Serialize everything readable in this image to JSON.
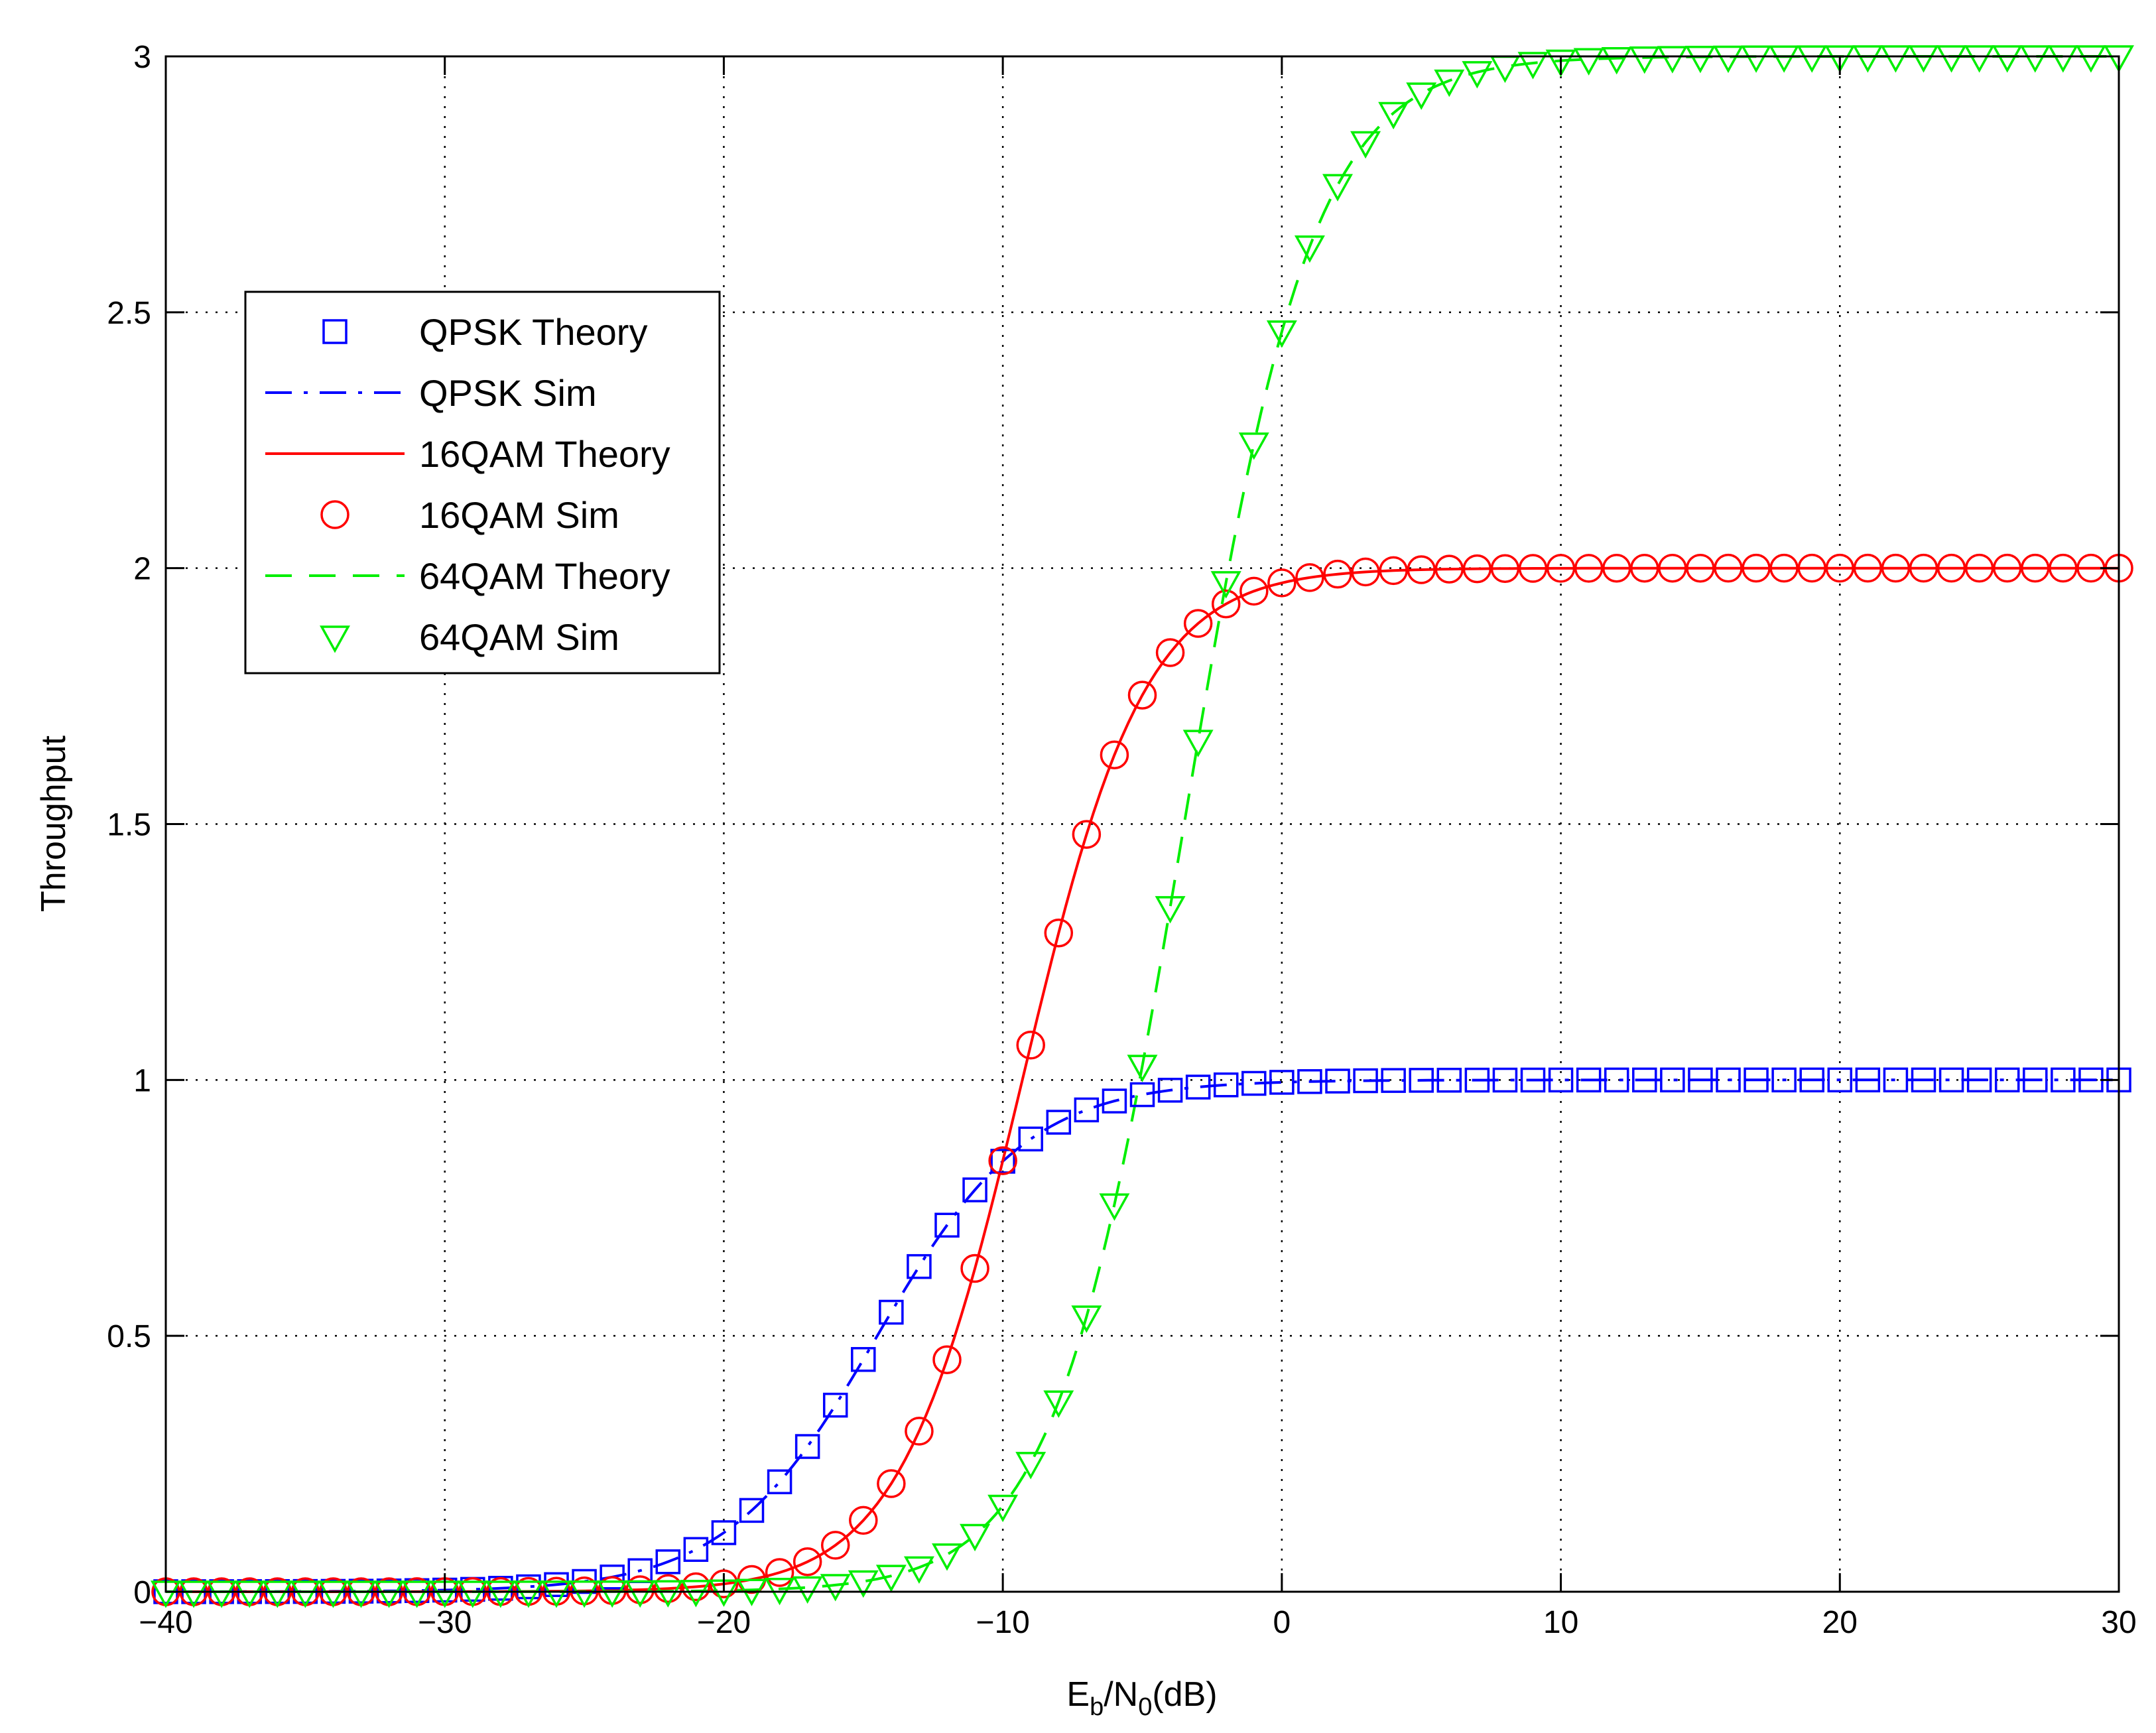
{
  "chart_data": {
    "type": "line",
    "xlabel": "E_b/N_0(dB)",
    "xlabel_parts": {
      "main": "E",
      "sub1": "b",
      "mid": "/N",
      "sub2": "0",
      "tail": "(dB)"
    },
    "ylabel": "Throughput",
    "xlim": [
      -40,
      30
    ],
    "ylim": [
      0,
      3
    ],
    "xticks": [
      -40,
      -30,
      -20,
      -10,
      0,
      10,
      20,
      30
    ],
    "xtick_labels": [
      "−40",
      "−30",
      "−20",
      "−10",
      "0",
      "10",
      "20",
      "30"
    ],
    "yticks": [
      0,
      0.5,
      1,
      1.5,
      2,
      2.5,
      3
    ],
    "ytick_labels": [
      "0",
      "0.5",
      "1",
      "1.5",
      "2",
      "2.5",
      "3"
    ],
    "grid": true,
    "legend_position": "upper-left",
    "colors": {
      "qpsk": "#0000ff",
      "qam16": "#ff0000",
      "qam64": "#00ee00"
    },
    "series": [
      {
        "name": "QPSK Theory",
        "style": "markers",
        "marker": "square",
        "color": "#0000ff",
        "model": {
          "max": 1,
          "center": -14.5,
          "width": 2.7
        }
      },
      {
        "name": "QPSK Sim",
        "style": "dashdot",
        "color": "#0000ff",
        "model": {
          "max": 1,
          "center": -14.5,
          "width": 2.7
        }
      },
      {
        "name": "16QAM Theory",
        "style": "solid",
        "color": "#ff0000",
        "model": {
          "max": 2,
          "center": -9.3,
          "width": 2.2
        }
      },
      {
        "name": "16QAM Sim",
        "style": "markers",
        "marker": "circle",
        "color": "#ff0000",
        "model": {
          "max": 2,
          "center": -9.3,
          "width": 2.2
        }
      },
      {
        "name": "64QAM Theory",
        "style": "dashed",
        "color": "#00ee00",
        "model": {
          "max": 3,
          "center": -3.5,
          "width": 2.3
        }
      },
      {
        "name": "64QAM Sim",
        "style": "markers",
        "marker": "triangle-down",
        "color": "#00ee00",
        "model": {
          "max": 3,
          "center": -3.5,
          "width": 2.3
        }
      }
    ]
  }
}
